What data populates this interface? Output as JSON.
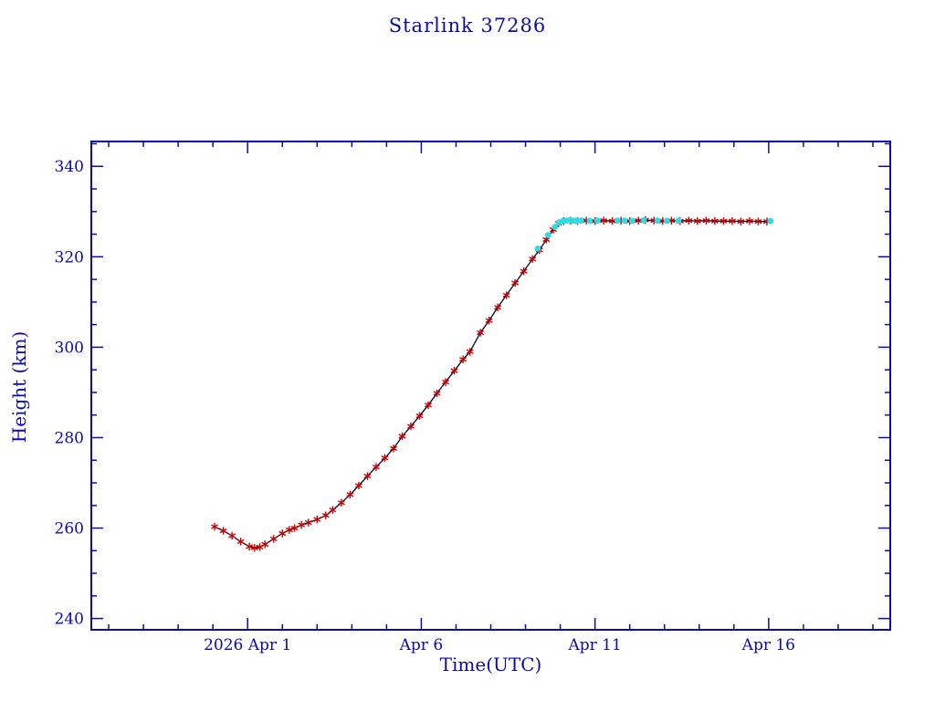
{
  "page": {
    "background": "#ffffff"
  },
  "chart_data": {
    "type": "line",
    "title": "Starlink 37286",
    "xlabel": "Time(UTC)",
    "ylabel": "Height (km)",
    "xlim_days": [
      -3.5,
      19.5
    ],
    "ylim": [
      237.5,
      345.5
    ],
    "x_major_ticks": [
      {
        "day": 1,
        "label": "2026 Apr  1"
      },
      {
        "day": 6,
        "label": "Apr  6"
      },
      {
        "day": 11,
        "label": "Apr 11"
      },
      {
        "day": 16,
        "label": "Apr 16"
      }
    ],
    "x_minor_step_days": 1,
    "y_major_ticks": [
      240,
      260,
      280,
      300,
      320,
      340
    ],
    "y_minor_step": 5,
    "grid": false,
    "legend": "none",
    "colors": {
      "axis": "#0b0bA8",
      "title": "#0b0bA8",
      "line": "#000030",
      "red_marker": "#c40000",
      "cyan_marker": "#2fdce6"
    },
    "series": [
      {
        "name": "measured-height-red-asterisks",
        "marker": "asterisk",
        "color_key": "red_marker",
        "connected": true,
        "points": [
          [
            0.05,
            260.3
          ],
          [
            0.3,
            259.4
          ],
          [
            0.55,
            258.3
          ],
          [
            0.8,
            257.0
          ],
          [
            1.05,
            255.9
          ],
          [
            1.2,
            255.6
          ],
          [
            1.35,
            255.8
          ],
          [
            1.5,
            256.4
          ],
          [
            1.75,
            257.6
          ],
          [
            2.0,
            258.8
          ],
          [
            2.2,
            259.6
          ],
          [
            2.35,
            260.0
          ],
          [
            2.55,
            260.7
          ],
          [
            2.75,
            261.2
          ],
          [
            3.0,
            261.9
          ],
          [
            3.25,
            262.8
          ],
          [
            3.45,
            264.0
          ],
          [
            3.7,
            265.6
          ],
          [
            3.95,
            267.4
          ],
          [
            4.2,
            269.4
          ],
          [
            4.45,
            271.5
          ],
          [
            4.7,
            273.5
          ],
          [
            4.95,
            275.5
          ],
          [
            5.2,
            277.6
          ],
          [
            5.45,
            280.3
          ],
          [
            5.7,
            282.5
          ],
          [
            5.95,
            284.8
          ],
          [
            6.2,
            287.2
          ],
          [
            6.45,
            289.8
          ],
          [
            6.7,
            292.3
          ],
          [
            6.95,
            294.8
          ],
          [
            7.2,
            297.3
          ],
          [
            7.4,
            299.0
          ],
          [
            7.7,
            303.2
          ],
          [
            7.95,
            305.9
          ],
          [
            8.2,
            308.8
          ],
          [
            8.45,
            311.5
          ],
          [
            8.7,
            314.2
          ],
          [
            8.95,
            316.8
          ],
          [
            9.2,
            319.5
          ],
          [
            9.4,
            321.5
          ],
          [
            9.6,
            323.8
          ],
          [
            9.8,
            326.0
          ],
          [
            9.95,
            327.4
          ],
          [
            10.1,
            327.9
          ],
          [
            10.3,
            328.0
          ],
          [
            10.5,
            327.9
          ],
          [
            10.75,
            328.0
          ],
          [
            11.0,
            327.9
          ],
          [
            11.25,
            328.0
          ],
          [
            11.5,
            327.9
          ],
          [
            11.75,
            328.0
          ],
          [
            12.0,
            327.9
          ],
          [
            12.25,
            328.0
          ],
          [
            12.45,
            328.1
          ],
          [
            12.7,
            328.0
          ],
          [
            12.95,
            327.9
          ],
          [
            13.2,
            328.0
          ],
          [
            13.45,
            327.9
          ],
          [
            13.7,
            328.0
          ],
          [
            13.95,
            327.9
          ],
          [
            14.2,
            328.0
          ],
          [
            14.45,
            327.9
          ],
          [
            14.7,
            327.9
          ],
          [
            14.95,
            327.9
          ],
          [
            15.2,
            327.8
          ],
          [
            15.45,
            327.9
          ],
          [
            15.7,
            327.8
          ],
          [
            15.95,
            327.8
          ]
        ]
      },
      {
        "name": "predicted-height-cyan-dots",
        "marker": "dot",
        "color_key": "cyan_marker",
        "connected": false,
        "points": [
          [
            9.35,
            321.8
          ],
          [
            9.65,
            324.8
          ],
          [
            9.85,
            326.6
          ],
          [
            9.97,
            327.6
          ],
          [
            10.07,
            327.9
          ],
          [
            10.17,
            328.0
          ],
          [
            10.27,
            328.05
          ],
          [
            10.37,
            328.0
          ],
          [
            10.47,
            327.95
          ],
          [
            10.6,
            328.0
          ],
          [
            10.85,
            327.95
          ],
          [
            11.07,
            328.0
          ],
          [
            11.65,
            328.0
          ],
          [
            11.85,
            328.0
          ],
          [
            12.07,
            327.95
          ],
          [
            12.4,
            328.05
          ],
          [
            12.8,
            328.0
          ],
          [
            13.07,
            327.95
          ],
          [
            13.4,
            328.0
          ],
          [
            16.05,
            327.9
          ]
        ]
      }
    ]
  }
}
